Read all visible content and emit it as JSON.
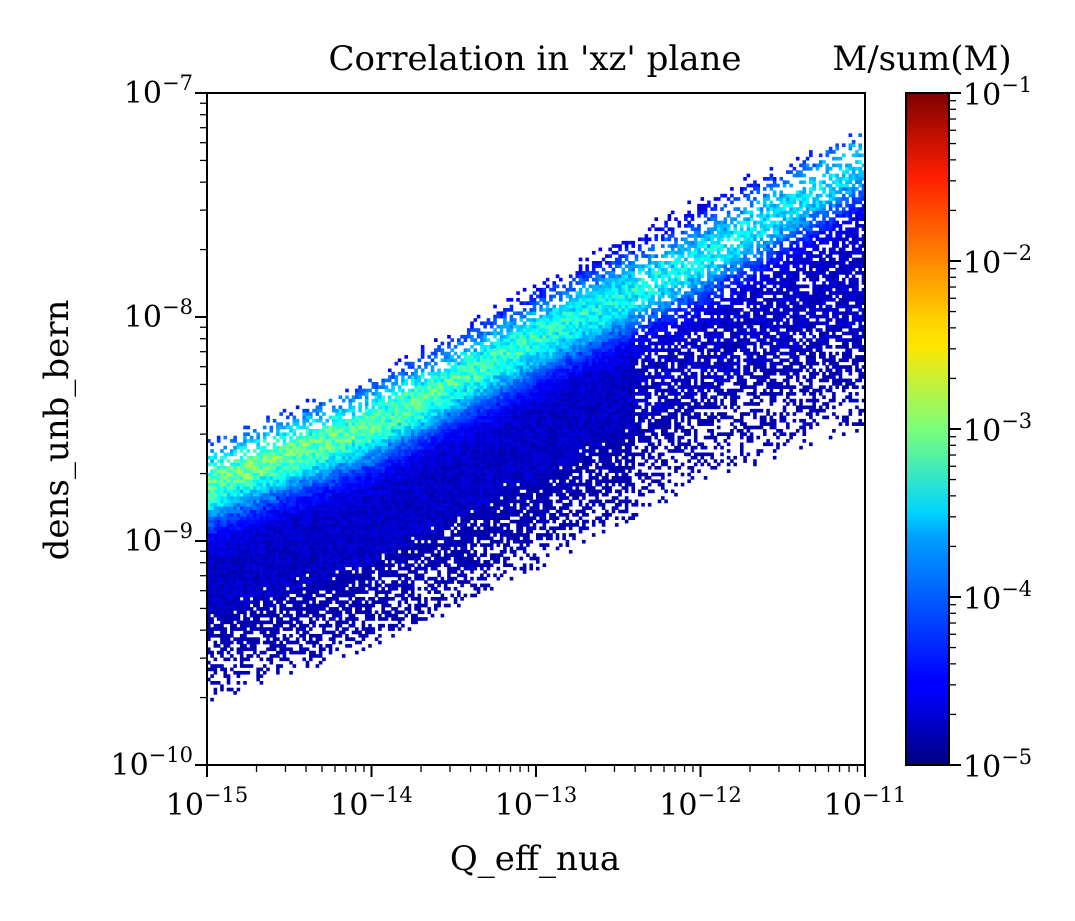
{
  "chart_data": {
    "type": "heatmap",
    "title": "Correlation in 'xz' plane",
    "xlabel": "Q_eff_nua",
    "ylabel": "dens_unb_bern",
    "x_scale": "log",
    "y_scale": "log",
    "xlim": [
      1e-15,
      1e-11
    ],
    "ylim": [
      1e-10,
      1e-07
    ],
    "x_ticks": [
      {
        "value": 1e-15,
        "base": "10",
        "exp": "−15"
      },
      {
        "value": 1e-14,
        "base": "10",
        "exp": "−14"
      },
      {
        "value": 1e-13,
        "base": "10",
        "exp": "−13"
      },
      {
        "value": 1e-12,
        "base": "10",
        "exp": "−12"
      },
      {
        "value": 1e-11,
        "base": "10",
        "exp": "−11"
      }
    ],
    "y_ticks": [
      {
        "value": 1e-10,
        "base": "10",
        "exp": "−10"
      },
      {
        "value": 1e-09,
        "base": "10",
        "exp": "−9"
      },
      {
        "value": 1e-08,
        "base": "10",
        "exp": "−8"
      },
      {
        "value": 1e-07,
        "base": "10",
        "exp": "−7"
      }
    ],
    "colorbar": {
      "label": "M/sum(M)",
      "scale": "log",
      "colormap": "jet",
      "range": [
        1e-05,
        0.1
      ],
      "ticks": [
        {
          "value": 1e-05,
          "base": "10",
          "exp": "−5"
        },
        {
          "value": 0.0001,
          "base": "10",
          "exp": "−4"
        },
        {
          "value": 0.001,
          "base": "10",
          "exp": "−3"
        },
        {
          "value": 0.01,
          "base": "10",
          "exp": "−2"
        },
        {
          "value": 0.1,
          "base": "10",
          "exp": "−1"
        }
      ]
    },
    "distribution": {
      "description_points": [
        {
          "x": 1e-15,
          "y_low": 2.1e-10,
          "y_high": 2.6e-09,
          "y_peak": 1.8e-09,
          "peak_value": 0.0006
        },
        {
          "x": 1e-14,
          "y_low": 3.6e-10,
          "y_high": 5e-09,
          "y_peak": 3.3e-09,
          "peak_value": 0.0005
        },
        {
          "x": 1e-13,
          "y_low": 8e-10,
          "y_high": 1.3e-08,
          "y_peak": 8e-09,
          "peak_value": 0.0003
        },
        {
          "x": 1e-12,
          "y_low": 2e-09,
          "y_high": 3.2e-08,
          "y_peak": 1.8e-08,
          "peak_value": 0.0002
        },
        {
          "x": 1e-11,
          "y_low": 3.5e-09,
          "y_high": 6.5e-08,
          "y_peak": 5e-08,
          "peak_value": 0.00015
        }
      ]
    }
  }
}
